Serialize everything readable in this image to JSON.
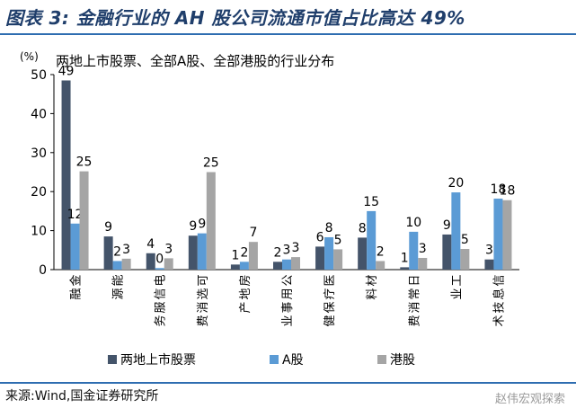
{
  "header": {
    "title": "图表 3:  金融行业的 AH 股公司流通市值占比高达 49%"
  },
  "footer": {
    "source": "来源:Wind,国金证券研究所",
    "watermark": "赵伟宏观探索"
  },
  "colors": {
    "rule": "#2e6db1",
    "title": "#1f3e6b"
  },
  "chart_data": {
    "type": "bar",
    "title": "两地上市股票、全部A股、全部港股的行业分布",
    "ylabel": "(%)",
    "xlabel": "",
    "ylim": [
      0,
      50
    ],
    "yticks": [
      0,
      10,
      20,
      30,
      40,
      50
    ],
    "grid": false,
    "legend_position": "bottom",
    "categories": [
      "金融",
      "能源",
      "电信服务",
      "可选消费",
      "房地产",
      "公用事业",
      "医疗保健",
      "材料",
      "日常消费",
      "工业",
      "信息技术"
    ],
    "series": [
      {
        "name": "两地上市股票",
        "color": "#44546a",
        "values": [
          48.5,
          8.5,
          4.2,
          8.7,
          1.3,
          2.0,
          5.9,
          8.2,
          0.6,
          9.0,
          2.6
        ],
        "labels": [
          "49",
          "9",
          "4",
          "9",
          "1",
          "2",
          "6",
          "8",
          "1",
          "9",
          "3"
        ]
      },
      {
        "name": "A股",
        "color": "#5b9bd5",
        "values": [
          11.8,
          2.2,
          0.4,
          9.3,
          2.0,
          2.6,
          8.3,
          15.0,
          9.7,
          19.8,
          18.2
        ],
        "labels": [
          "12",
          "2",
          "0",
          "9",
          "2",
          "3",
          "8",
          "15",
          "10",
          "20",
          "18"
        ]
      },
      {
        "name": "港股",
        "color": "#a5a5a5",
        "values": [
          25.2,
          2.8,
          2.9,
          25.0,
          7.1,
          3.2,
          5.2,
          2.2,
          3.0,
          5.3,
          17.8
        ],
        "labels": [
          "25",
          "3",
          "3",
          "25",
          "7",
          "3",
          "5",
          "2",
          "3",
          "5",
          "18"
        ]
      }
    ]
  }
}
